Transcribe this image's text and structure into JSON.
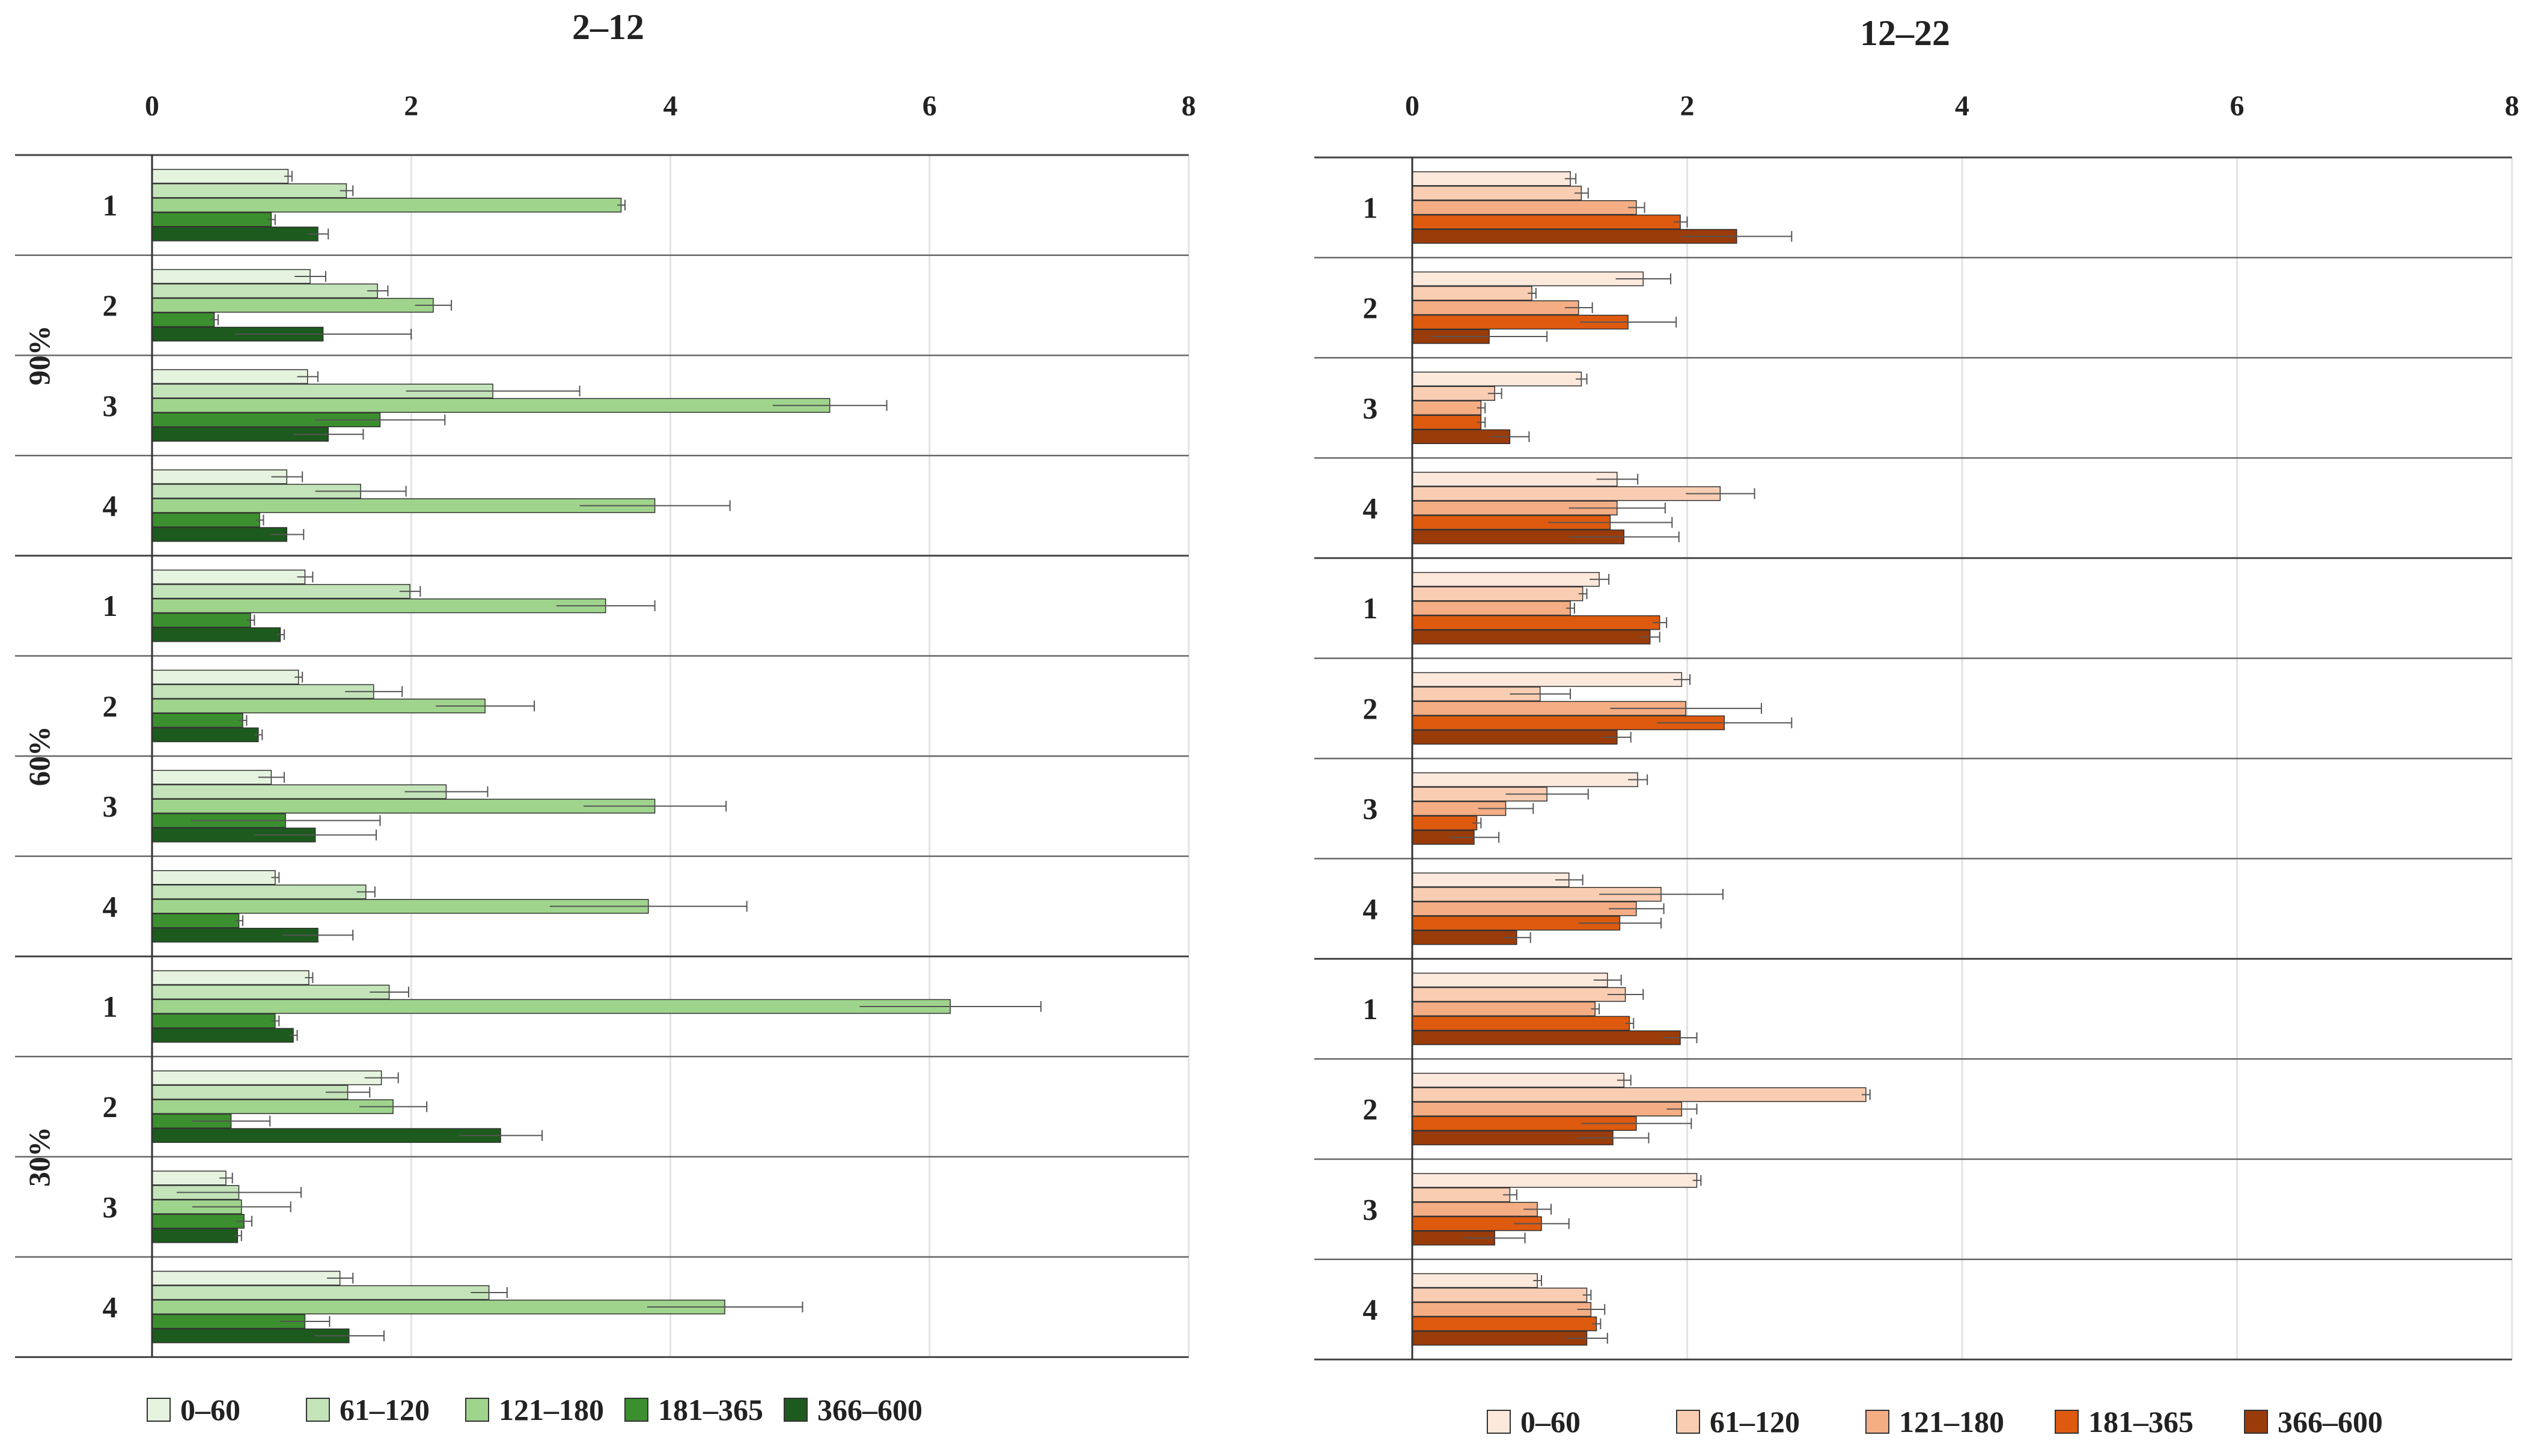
{
  "chart_data": [
    {
      "type": "bar",
      "orientation": "horizontal",
      "title": "2–12",
      "xlim": [
        0,
        8
      ],
      "xticks": [
        "0",
        "2",
        "4",
        "6",
        "8"
      ],
      "groups": [
        "90%",
        "60%",
        "30%"
      ],
      "rows": [
        "1",
        "2",
        "3",
        "4"
      ],
      "legend": [
        "0–60",
        "61–120",
        "121–180",
        "181–365",
        "366–600"
      ],
      "colors": [
        "#e5f3df",
        "#c3e3b9",
        "#9fd48d",
        "#3c8f2f",
        "#1d5a1d"
      ],
      "values": [
        [
          [
            1.05,
            1.5,
            3.62,
            0.92,
            1.28
          ],
          [
            1.22,
            1.74,
            2.17,
            0.48,
            1.32
          ],
          [
            1.2,
            2.63,
            5.23,
            1.76,
            1.36
          ],
          [
            1.04,
            1.61,
            3.88,
            0.83,
            1.04
          ]
        ],
        [
          [
            1.18,
            1.99,
            3.5,
            0.76,
            0.99
          ],
          [
            1.13,
            1.71,
            2.57,
            0.7,
            0.82
          ],
          [
            0.92,
            2.27,
            3.88,
            1.03,
            1.26
          ],
          [
            0.95,
            1.65,
            3.83,
            0.67,
            1.28
          ]
        ],
        [
          [
            1.21,
            1.83,
            6.16,
            0.95,
            1.09
          ],
          [
            1.77,
            1.51,
            1.86,
            0.61,
            2.69
          ],
          [
            0.57,
            0.67,
            0.69,
            0.71,
            0.66
          ],
          [
            1.45,
            2.6,
            4.42,
            1.18,
            1.52
          ]
        ]
      ],
      "errors": [
        [
          [
            0.03,
            0.05,
            0.03,
            0.03,
            0.08
          ],
          [
            0.12,
            0.08,
            0.14,
            0.03,
            0.68
          ],
          [
            0.08,
            0.67,
            0.44,
            0.5,
            0.27
          ],
          [
            0.12,
            0.35,
            0.58,
            0.03,
            0.13
          ]
        ],
        [
          [
            0.06,
            0.08,
            0.38,
            0.03,
            0.03
          ],
          [
            0.03,
            0.22,
            0.38,
            0.03,
            0.03
          ],
          [
            0.1,
            0.32,
            0.55,
            0.73,
            0.47
          ],
          [
            0.03,
            0.07,
            0.76,
            0.03,
            0.27
          ]
        ],
        [
          [
            0.03,
            0.15,
            0.7,
            0.03,
            0.03
          ],
          [
            0.13,
            0.17,
            0.26,
            0.3,
            0.32
          ],
          [
            0.05,
            0.48,
            0.38,
            0.06,
            0.03
          ],
          [
            0.1,
            0.14,
            0.6,
            0.19,
            0.27
          ]
        ]
      ]
    },
    {
      "type": "bar",
      "orientation": "horizontal",
      "title": "12–22",
      "xlim": [
        0,
        8
      ],
      "xticks": [
        "0",
        "2",
        "4",
        "6",
        "8"
      ],
      "groups": [
        "90%",
        "60%",
        "30%"
      ],
      "rows": [
        "1",
        "2",
        "3",
        "4"
      ],
      "legend": [
        "0–60",
        "61–120",
        "121–180",
        "181–365",
        "366–600"
      ],
      "colors": [
        "#fde8dc",
        "#f9cdb2",
        "#f5ad84",
        "#dd5a0f",
        "#9a3b0a"
      ],
      "values": [
        [
          [
            1.15,
            1.23,
            1.63,
            1.95,
            2.36
          ],
          [
            1.68,
            0.87,
            1.21,
            1.57,
            0.56
          ],
          [
            1.23,
            0.6,
            0.5,
            0.5,
            0.71
          ],
          [
            1.49,
            2.24,
            1.49,
            1.44,
            1.54
          ]
        ],
        [
          [
            1.36,
            1.24,
            1.15,
            1.8,
            1.73
          ],
          [
            1.96,
            0.93,
            1.99,
            2.27,
            1.49
          ],
          [
            1.64,
            0.98,
            0.68,
            0.47,
            0.45
          ],
          [
            1.14,
            1.81,
            1.63,
            1.51,
            0.76
          ]
        ],
        [
          [
            1.42,
            1.55,
            1.33,
            1.58,
            1.95
          ],
          [
            1.54,
            3.3,
            1.96,
            1.63,
            1.46
          ],
          [
            2.07,
            0.71,
            0.91,
            0.94,
            0.6
          ],
          [
            0.91,
            1.27,
            1.3,
            1.34,
            1.27
          ]
        ]
      ],
      "errors": [
        [
          [
            0.04,
            0.05,
            0.06,
            0.05,
            0.4
          ],
          [
            0.2,
            0.03,
            0.1,
            0.35,
            0.42
          ],
          [
            0.04,
            0.05,
            0.03,
            0.03,
            0.14
          ],
          [
            0.15,
            0.25,
            0.35,
            0.45,
            0.4
          ]
        ],
        [
          [
            0.07,
            0.03,
            0.03,
            0.05,
            0.07
          ],
          [
            0.06,
            0.22,
            0.55,
            0.49,
            0.1
          ],
          [
            0.07,
            0.3,
            0.2,
            0.03,
            0.18
          ],
          [
            0.1,
            0.45,
            0.2,
            0.3,
            0.1
          ]
        ],
        [
          [
            0.1,
            0.13,
            0.03,
            0.03,
            0.12
          ],
          [
            0.05,
            0.03,
            0.11,
            0.4,
            0.26
          ],
          [
            0.03,
            0.05,
            0.1,
            0.2,
            0.22
          ],
          [
            0.03,
            0.03,
            0.1,
            0.03,
            0.15
          ]
        ]
      ]
    }
  ]
}
